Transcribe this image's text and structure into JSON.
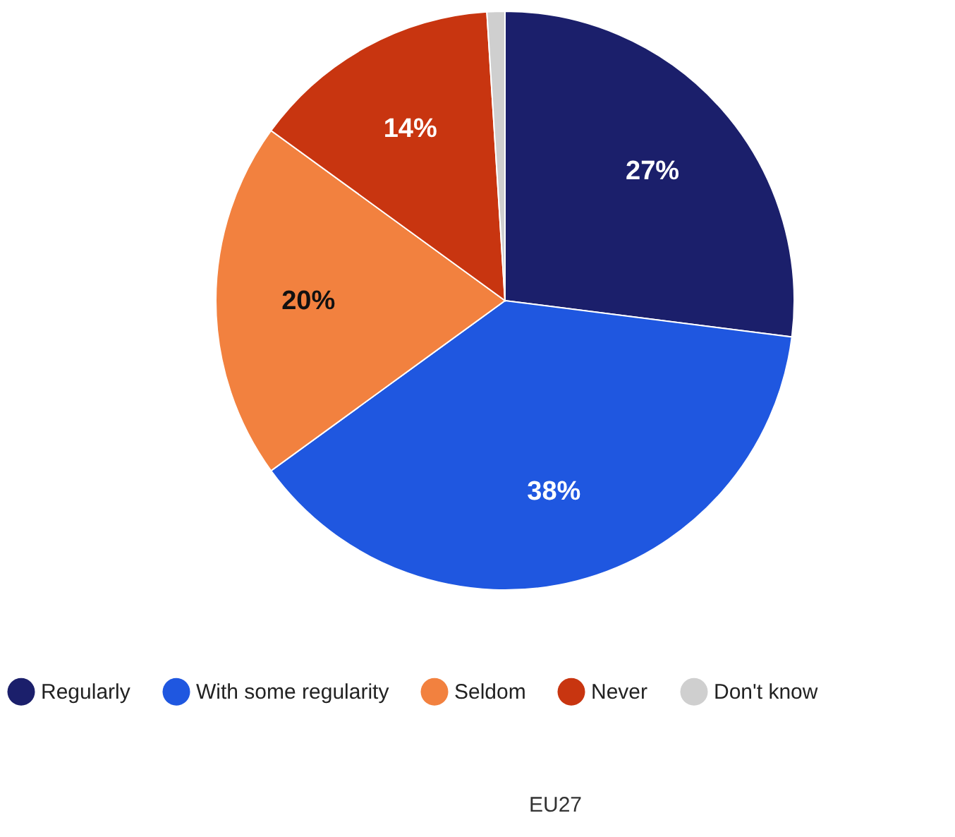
{
  "chart_data": {
    "type": "pie",
    "categories": [
      "Regularly",
      "With some regularity",
      "Seldom",
      "Never",
      "Don't know"
    ],
    "values": [
      27,
      38,
      20,
      14,
      1
    ],
    "colors": [
      "#1b1f6b",
      "#1f57e0",
      "#f2813f",
      "#c83510",
      "#cfcfcf"
    ],
    "value_labels": [
      "27%",
      "38%",
      "20%",
      "14%",
      null
    ],
    "legend": "bottom",
    "annotations": [
      "EU27"
    ]
  }
}
